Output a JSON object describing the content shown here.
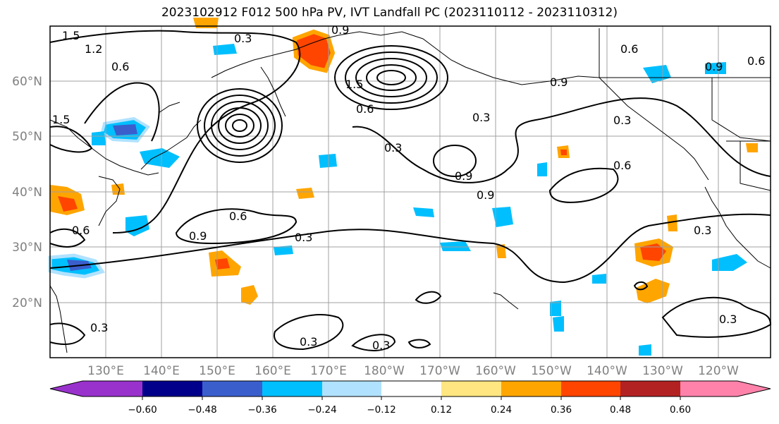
{
  "title": "2023102912 F012 500 hPa PV, IVT Landfall PC (2023110112 - 2023110312)",
  "map": {
    "lat_labels": [
      "60°N",
      "50°N",
      "40°N",
      "30°N",
      "20°N"
    ],
    "lon_labels": [
      "130°E",
      "140°E",
      "150°E",
      "160°E",
      "170°E",
      "180°W",
      "170°W",
      "160°W",
      "150°W",
      "140°W",
      "130°W",
      "120°W"
    ],
    "contour_labels": [
      "1.5",
      "1.2",
      "0.6",
      "1.5",
      "0.3",
      "0.9",
      "1.5",
      "0.6",
      "0.3",
      "0.6",
      "0.9",
      "0.3",
      "0.3",
      "0.9",
      "0.9",
      "0.6",
      "0.3",
      "0.3",
      "0.6",
      "0.9",
      "0.6",
      "0.3",
      "0.3",
      "0.3",
      "0.3",
      "0.6",
      "0.9"
    ]
  },
  "colorbar": {
    "ticks": [
      "−0.60",
      "−0.48",
      "−0.36",
      "−0.24",
      "−0.12",
      "0.12",
      "0.24",
      "0.36",
      "0.48",
      "0.60"
    ],
    "colors": [
      "#9932cc",
      "#00008b",
      "#3a5fcd",
      "#00bfff",
      "#b0e2ff",
      "#ffffff",
      "#ffe680",
      "#ffa500",
      "#ff4500",
      "#b22222",
      "#ff82ab"
    ]
  }
}
